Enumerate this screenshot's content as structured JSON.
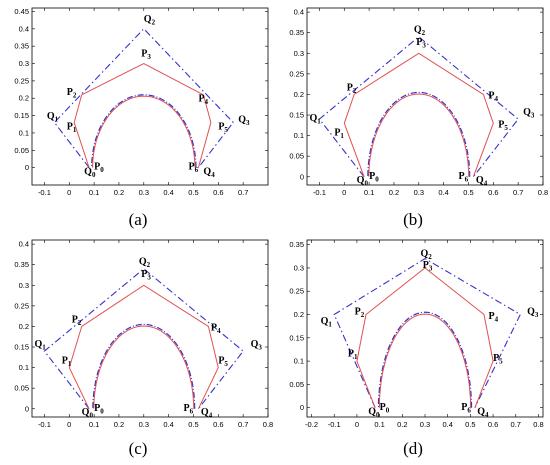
{
  "chart_data": [
    {
      "type": "line",
      "panel_id": "a",
      "caption": "(a)",
      "xlim": [
        -0.15,
        0.8
      ],
      "ylim": [
        -0.05,
        0.46
      ],
      "xticks": [
        "-0.1",
        "0",
        "0.1",
        "0.2",
        "0.3",
        "0.4",
        "0.5",
        "0.6",
        "0.7"
      ],
      "xtick_values": [
        -0.1,
        0,
        0.1,
        0.2,
        0.3,
        0.4,
        0.5,
        0.6,
        0.7
      ],
      "yticks": [
        "0",
        "0.05",
        "0.1",
        "0.15",
        "0.2",
        "0.25",
        "0.3",
        "0.35",
        "0.4",
        "0.45"
      ],
      "ytick_values": [
        0,
        0.05,
        0.1,
        0.15,
        0.2,
        0.25,
        0.3,
        0.35,
        0.4,
        0.45
      ],
      "series": [
        {
          "style": "dashdot",
          "color": "#3333cc",
          "points": [
            [
              0.08,
              0.0
            ],
            [
              -0.06,
              0.13
            ],
            [
              0.3,
              0.4
            ],
            [
              0.66,
              0.13
            ],
            [
              0.52,
              0.0
            ]
          ]
        },
        {
          "style": "solid",
          "color": "#e05050",
          "points": [
            [
              0.08,
              0.0
            ],
            [
              0.02,
              0.13
            ],
            [
              0.05,
              0.21
            ],
            [
              0.3,
              0.3
            ],
            [
              0.54,
              0.21
            ],
            [
              0.57,
              0.13
            ],
            [
              0.52,
              0.0
            ]
          ]
        }
      ],
      "arc": {
        "center": [
          0.3,
          0.0
        ],
        "radius": 0.21
      },
      "labels": [
        {
          "t": "Q",
          "s": "0",
          "x": 0.06,
          "y": -0.02
        },
        {
          "t": "P",
          "s": "0",
          "x": 0.1,
          "y": -0.005
        },
        {
          "t": "Q",
          "s": "1",
          "x": -0.09,
          "y": 0.14
        },
        {
          "t": "P",
          "s": "1",
          "x": -0.01,
          "y": 0.11
        },
        {
          "t": "P",
          "s": "2",
          "x": -0.01,
          "y": 0.21
        },
        {
          "t": "Q",
          "s": "2",
          "x": 0.3,
          "y": 0.42
        },
        {
          "t": "P",
          "s": "3",
          "x": 0.29,
          "y": 0.32
        },
        {
          "t": "P",
          "s": "4",
          "x": 0.52,
          "y": 0.19
        },
        {
          "t": "P",
          "s": "5",
          "x": 0.6,
          "y": 0.11
        },
        {
          "t": "Q",
          "s": "3",
          "x": 0.68,
          "y": 0.13
        },
        {
          "t": "P",
          "s": "6",
          "x": 0.48,
          "y": -0.005
        },
        {
          "t": "Q",
          "s": "4",
          "x": 0.54,
          "y": -0.02
        }
      ]
    },
    {
      "type": "line",
      "panel_id": "b",
      "caption": "(b)",
      "xlim": [
        -0.15,
        0.8
      ],
      "ylim": [
        -0.02,
        0.41
      ],
      "xticks": [
        "-0.1",
        "0",
        "0.1",
        "0.2",
        "0.3",
        "0.4",
        "0.5",
        "0.6",
        "0.7",
        "0.8"
      ],
      "xtick_values": [
        -0.1,
        0,
        0.1,
        0.2,
        0.3,
        0.4,
        0.5,
        0.6,
        0.7,
        0.8
      ],
      "yticks": [
        "0",
        "0.05",
        "0.1",
        "0.15",
        "0.2",
        "0.25",
        "0.3",
        "0.35",
        "0.4"
      ],
      "ytick_values": [
        0,
        0.05,
        0.1,
        0.15,
        0.2,
        0.25,
        0.3,
        0.35,
        0.4
      ],
      "series": [
        {
          "style": "dashdot",
          "color": "#3333cc",
          "points": [
            [
              0.08,
              0.0
            ],
            [
              -0.1,
              0.14
            ],
            [
              0.3,
              0.34
            ],
            [
              0.7,
              0.14
            ],
            [
              0.52,
              0.0
            ]
          ]
        },
        {
          "style": "solid",
          "color": "#e05050",
          "points": [
            [
              0.08,
              0.0
            ],
            [
              0.0,
              0.13
            ],
            [
              0.04,
              0.2
            ],
            [
              0.3,
              0.3
            ],
            [
              0.56,
              0.2
            ],
            [
              0.6,
              0.13
            ],
            [
              0.52,
              0.0
            ]
          ]
        }
      ],
      "arc": {
        "center": [
          0.3,
          0.0
        ],
        "radius": 0.205
      },
      "labels": [
        {
          "t": "Q",
          "s": "0",
          "x": 0.05,
          "y": -0.015
        },
        {
          "t": "P",
          "s": "0",
          "x": 0.1,
          "y": -0.005
        },
        {
          "t": "Q",
          "s": "1",
          "x": -0.14,
          "y": 0.135
        },
        {
          "t": "P",
          "s": "1",
          "x": -0.04,
          "y": 0.1
        },
        {
          "t": "P",
          "s": "2",
          "x": 0.01,
          "y": 0.21
        },
        {
          "t": "Q",
          "s": "2",
          "x": 0.28,
          "y": 0.35
        },
        {
          "t": "P",
          "s": "3",
          "x": 0.29,
          "y": 0.32
        },
        {
          "t": "P",
          "s": "4",
          "x": 0.58,
          "y": 0.19
        },
        {
          "t": "P",
          "s": "5",
          "x": 0.62,
          "y": 0.12
        },
        {
          "t": "Q",
          "s": "3",
          "x": 0.72,
          "y": 0.15
        },
        {
          "t": "P",
          "s": "6",
          "x": 0.46,
          "y": -0.005
        },
        {
          "t": "Q",
          "s": "4",
          "x": 0.53,
          "y": -0.015
        }
      ]
    },
    {
      "type": "line",
      "panel_id": "c",
      "caption": "(c)",
      "xlim": [
        -0.15,
        0.8
      ],
      "ylim": [
        -0.02,
        0.41
      ],
      "xticks": [
        "-0.1",
        "0",
        "0.1",
        "0.2",
        "0.3",
        "0.4",
        "0.5",
        "0.6",
        "0.7",
        "0.8"
      ],
      "xtick_values": [
        -0.1,
        0,
        0.1,
        0.2,
        0.3,
        0.4,
        0.5,
        0.6,
        0.7,
        0.8
      ],
      "yticks": [
        "0",
        "0.05",
        "0.1",
        "0.15",
        "0.2",
        "0.25",
        "0.3",
        "0.35",
        "0.4"
      ],
      "ytick_values": [
        0,
        0.05,
        0.1,
        0.15,
        0.2,
        0.25,
        0.3,
        0.35,
        0.4
      ],
      "series": [
        {
          "style": "dashdot",
          "color": "#3333cc",
          "points": [
            [
              0.08,
              0.0
            ],
            [
              -0.1,
              0.14
            ],
            [
              0.3,
              0.34
            ],
            [
              0.7,
              0.14
            ],
            [
              0.52,
              0.0
            ]
          ]
        },
        {
          "style": "solid",
          "color": "#e05050",
          "points": [
            [
              0.08,
              0.0
            ],
            [
              0.0,
              0.1
            ],
            [
              0.05,
              0.2
            ],
            [
              0.3,
              0.3
            ],
            [
              0.56,
              0.2
            ],
            [
              0.6,
              0.1
            ],
            [
              0.52,
              0.0
            ]
          ]
        }
      ],
      "arc": {
        "center": [
          0.3,
          0.0
        ],
        "radius": 0.205
      },
      "labels": [
        {
          "t": "Q",
          "s": "0",
          "x": 0.05,
          "y": -0.015
        },
        {
          "t": "P",
          "s": "0",
          "x": 0.1,
          "y": -0.005
        },
        {
          "t": "Q",
          "s": "1",
          "x": -0.14,
          "y": 0.15
        },
        {
          "t": "P",
          "s": "1",
          "x": -0.03,
          "y": 0.11
        },
        {
          "t": "P",
          "s": "2",
          "x": 0.01,
          "y": 0.21
        },
        {
          "t": "Q",
          "s": "2",
          "x": 0.28,
          "y": 0.35
        },
        {
          "t": "P",
          "s": "3",
          "x": 0.29,
          "y": 0.32
        },
        {
          "t": "P",
          "s": "4",
          "x": 0.57,
          "y": 0.19
        },
        {
          "t": "P",
          "s": "5",
          "x": 0.6,
          "y": 0.11
        },
        {
          "t": "Q",
          "s": "3",
          "x": 0.73,
          "y": 0.15
        },
        {
          "t": "P",
          "s": "6",
          "x": 0.46,
          "y": -0.005
        },
        {
          "t": "Q",
          "s": "4",
          "x": 0.53,
          "y": -0.015
        }
      ]
    },
    {
      "type": "line",
      "panel_id": "d",
      "caption": "(d)",
      "xlim": [
        -0.22,
        0.82
      ],
      "ylim": [
        -0.02,
        0.36
      ],
      "xticks": [
        "-0.2",
        "-0.1",
        "0",
        "0.1",
        "0.2",
        "0.3",
        "0.4",
        "0.5",
        "0.6",
        "0.7",
        "0.8"
      ],
      "xtick_values": [
        -0.2,
        -0.1,
        0,
        0.1,
        0.2,
        0.3,
        0.4,
        0.5,
        0.6,
        0.7,
        0.8
      ],
      "yticks": [
        "0",
        "0.05",
        "0.1",
        "0.15",
        "0.2",
        "0.25",
        "0.3",
        "0.35"
      ],
      "ytick_values": [
        0,
        0.05,
        0.1,
        0.15,
        0.2,
        0.25,
        0.3,
        0.35
      ],
      "series": [
        {
          "style": "dashdot",
          "color": "#3333cc",
          "points": [
            [
              0.08,
              0.0
            ],
            [
              -0.1,
              0.2
            ],
            [
              0.3,
              0.32
            ],
            [
              0.72,
              0.2
            ],
            [
              0.52,
              0.0
            ]
          ]
        },
        {
          "style": "solid",
          "color": "#e05050",
          "points": [
            [
              0.08,
              0.0
            ],
            [
              0.0,
              0.1
            ],
            [
              0.04,
              0.2
            ],
            [
              0.3,
              0.3
            ],
            [
              0.56,
              0.2
            ],
            [
              0.6,
              0.1
            ],
            [
              0.52,
              0.0
            ]
          ]
        }
      ],
      "arc": {
        "center": [
          0.3,
          0.0
        ],
        "radius": 0.205
      },
      "labels": [
        {
          "t": "Q",
          "s": "0",
          "x": 0.05,
          "y": -0.015
        },
        {
          "t": "P",
          "s": "0",
          "x": 0.1,
          "y": -0.005
        },
        {
          "t": "Q",
          "s": "1",
          "x": -0.16,
          "y": 0.18
        },
        {
          "t": "P",
          "s": "1",
          "x": -0.04,
          "y": 0.11
        },
        {
          "t": "P",
          "s": "2",
          "x": -0.01,
          "y": 0.2
        },
        {
          "t": "Q",
          "s": "2",
          "x": 0.28,
          "y": 0.325
        },
        {
          "t": "P",
          "s": "3",
          "x": 0.29,
          "y": 0.3
        },
        {
          "t": "P",
          "s": "4",
          "x": 0.58,
          "y": 0.19
        },
        {
          "t": "P",
          "s": "5",
          "x": 0.6,
          "y": 0.1
        },
        {
          "t": "Q",
          "s": "3",
          "x": 0.75,
          "y": 0.2
        },
        {
          "t": "P",
          "s": "6",
          "x": 0.46,
          "y": -0.005
        },
        {
          "t": "Q",
          "s": "4",
          "x": 0.53,
          "y": -0.015
        }
      ]
    }
  ]
}
